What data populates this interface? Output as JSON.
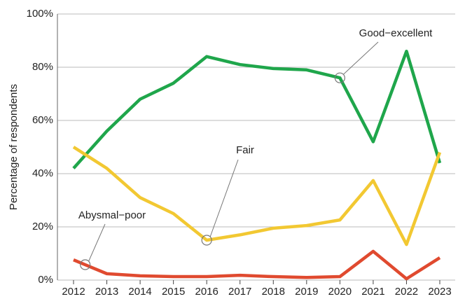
{
  "chart_data": {
    "type": "line",
    "y_label": "Percentage of respondents",
    "categories": [
      "2012",
      "2013",
      "2014",
      "2015",
      "2016",
      "2017",
      "2018",
      "2019",
      "2020",
      "2021",
      "2022",
      "2023"
    ],
    "series": [
      {
        "name": "Good−excellent",
        "color": "#1fa64b",
        "values": [
          42,
          56,
          68,
          74,
          84,
          81,
          79.5,
          79,
          76,
          52,
          86,
          44
        ]
      },
      {
        "name": "Fair",
        "color": "#f2c832",
        "values": [
          50,
          42,
          31,
          25,
          15,
          17,
          19.5,
          20.5,
          22.6,
          37.4,
          13.4,
          48
        ]
      },
      {
        "name": "Abysmal−poor",
        "color": "#e04a2f",
        "values": [
          7.6,
          2.4,
          1.6,
          1.3,
          1.3,
          1.8,
          1.3,
          1,
          1.3,
          10.8,
          0.5,
          8.4
        ]
      }
    ],
    "ylim": [
      0,
      100
    ],
    "yticks": [
      {
        "value": 0,
        "label": "0%"
      },
      {
        "value": 20,
        "label": "20%"
      },
      {
        "value": 40,
        "label": "40%"
      },
      {
        "value": 60,
        "label": "60%"
      },
      {
        "value": 80,
        "label": "80%"
      },
      {
        "value": 100,
        "label": "100%"
      }
    ],
    "grid": true
  }
}
